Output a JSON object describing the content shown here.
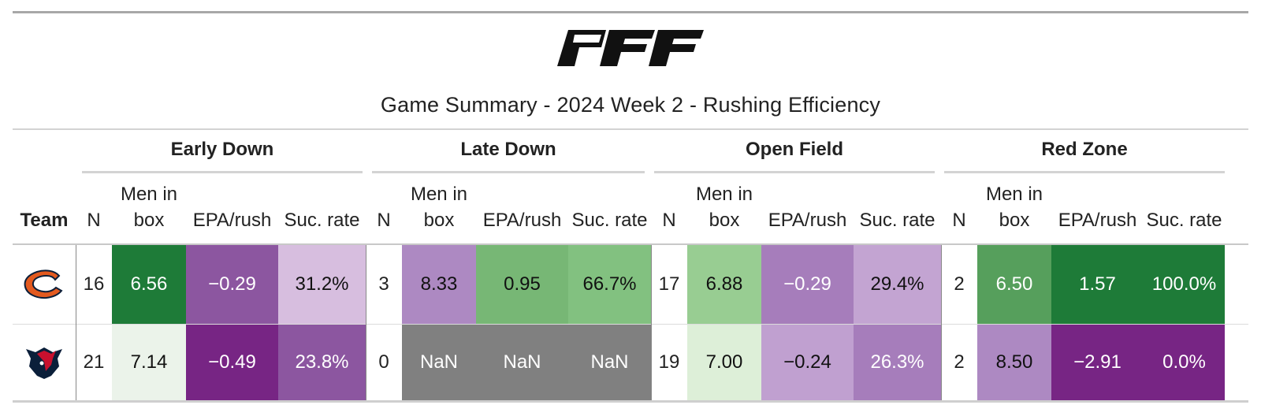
{
  "title": "Game Summary - 2024 Week 2 - Rushing Efficiency",
  "logo_text": "PFF",
  "team_header": "Team",
  "groups": [
    {
      "label": "Early Down"
    },
    {
      "label": "Late Down"
    },
    {
      "label": "Open Field"
    },
    {
      "label": "Red Zone"
    }
  ],
  "col_labels": {
    "n": "N",
    "men_line1": "Men in",
    "men_line2": "box",
    "epa": "EPA/rush",
    "suc": "Suc. rate"
  },
  "rows": [
    {
      "team": "Chicago Bears",
      "logo_icon": "bears-logo-icon",
      "cells": [
        {
          "n": "16",
          "men": "6.56",
          "epa": "−0.29",
          "suc": "31.2%"
        },
        {
          "n": "3",
          "men": "8.33",
          "epa": "0.95",
          "suc": "66.7%"
        },
        {
          "n": "17",
          "men": "6.88",
          "epa": "−0.29",
          "suc": "29.4%"
        },
        {
          "n": "2",
          "men": "6.50",
          "epa": "1.57",
          "suc": "100.0%"
        }
      ],
      "colors": [
        [
          "#1e7b38",
          "#8c56a0",
          "#d7bedf"
        ],
        [
          "#ad89c2",
          "#77b775",
          "#82c180"
        ],
        [
          "#98cd92",
          "#a67dbb",
          "#c3a4d2"
        ],
        [
          "#569f5c",
          "#1e7b38",
          "#1e7b38"
        ]
      ]
    },
    {
      "team": "Houston Texans",
      "logo_icon": "texans-logo-icon",
      "cells": [
        {
          "n": "21",
          "men": "7.14",
          "epa": "−0.49",
          "suc": "23.8%"
        },
        {
          "n": "0",
          "men": "NaN",
          "epa": "NaN",
          "suc": "NaN"
        },
        {
          "n": "19",
          "men": "7.00",
          "epa": "−0.24",
          "suc": "26.3%"
        },
        {
          "n": "2",
          "men": "8.50",
          "epa": "−2.91",
          "suc": "0.0%"
        }
      ],
      "colors": [
        [
          "#ebf3ea",
          "#772584",
          "#8c56a0"
        ],
        [
          "#808080",
          "#808080",
          "#808080"
        ],
        [
          "#ddefd8",
          "#c0a0d0",
          "#a67dbb"
        ],
        [
          "#ad89c2",
          "#772584",
          "#772584"
        ]
      ]
    }
  ]
}
